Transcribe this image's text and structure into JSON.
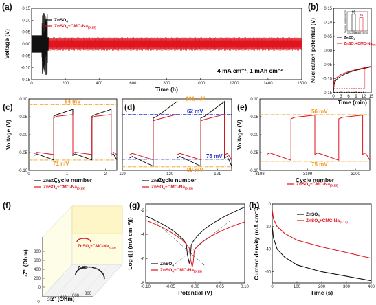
{
  "colors": {
    "znso4": "#111111",
    "cmc": "#e0141e",
    "orange": "#f39a1e",
    "blue": "#2a35c9"
  },
  "legend": {
    "a": "ZnSO",
    "a_sub": "4",
    "b": "ZnSO",
    "b_mid": "4",
    "b_tail": "+CMC-Na",
    "b_sub": "(0.13)"
  },
  "chart_data": [
    {
      "panel": "(a)",
      "type": "line",
      "xlabel": "Time (h)",
      "ylabel": "Voltage (V)",
      "xlim": [
        0,
        1600
      ],
      "ylim": [
        -0.15,
        0.15
      ],
      "xticks": [
        "0",
        "200",
        "400",
        "600",
        "800",
        "1000",
        "1200",
        "1400",
        "1600"
      ],
      "yticks": [
        "-0.15",
        "-0.10",
        "-0.05",
        "0.00",
        "0.05",
        "0.10",
        "0.15"
      ],
      "annotation": "4 mA cm⁻², 1 mAh cm⁻²",
      "series": [
        {
          "name": "ZnSO4",
          "x_range": [
            0,
            100
          ],
          "amplitude_max": 0.13
        },
        {
          "name": "ZnSO4+CMC-Na(0.13)",
          "x_range": [
            0,
            1600
          ],
          "amplitude": 0.028
        }
      ]
    },
    {
      "panel": "(b)",
      "type": "line",
      "xlabel": "Time (min)",
      "ylabel": "Nucleation potential (V)",
      "xlim": [
        0,
        15
      ],
      "ylim": [
        -0.15,
        0.15
      ],
      "xticks": [
        "0",
        "3",
        "6",
        "9",
        "12",
        "15"
      ],
      "yticks": [
        "-0.15",
        "-0.10",
        "-0.05",
        "0.00",
        "0.05",
        "0.10",
        "0.15"
      ],
      "series": [
        {
          "name": "ZnSO4",
          "x": [
            0,
            0.3,
            1,
            3,
            6,
            9,
            12,
            15
          ],
          "y": [
            -0.148,
            -0.12,
            -0.105,
            -0.09,
            -0.078,
            -0.07,
            -0.064,
            -0.058
          ]
        },
        {
          "name": "ZnSO4+CMC-Na(0.13)",
          "x": [
            0,
            0.3,
            1,
            3,
            6,
            9,
            12,
            15
          ],
          "y": [
            -0.135,
            -0.11,
            -0.098,
            -0.085,
            -0.075,
            -0.068,
            -0.062,
            -0.056
          ]
        }
      ],
      "inset": {
        "ylabel": "Nucleation overpotential (mV)",
        "categories": [
          "without CMC-Na",
          "with 0.13 CMC-Na"
        ],
        "values": [
          95,
          76
        ]
      }
    },
    {
      "panel": "(c)",
      "type": "line",
      "xlabel": "Cycle number",
      "ylabel": "Voltage (V)",
      "xlim": [
        0,
        2.3
      ],
      "ylim": [
        -0.1,
        0.1
      ],
      "xticks": [
        "0",
        "1",
        "2"
      ],
      "yticks": [
        "-0.10",
        "-0.05",
        "0.00",
        "0.05",
        "0.10"
      ],
      "annotations": [
        {
          "text": "84 mV",
          "y": 0.084
        },
        {
          "text": "71 mV",
          "y": -0.071
        }
      ]
    },
    {
      "panel": "(d)",
      "type": "line",
      "xlabel": "Cycle number",
      "ylabel": "",
      "xlim": [
        119,
        121.3
      ],
      "ylim": [
        -0.11,
        0.11
      ],
      "xticks": [
        "119",
        "120",
        "121"
      ],
      "annotations": [
        {
          "text": "101 mV",
          "y": 0.101
        },
        {
          "text": "62 mV",
          "y": 0.062
        },
        {
          "text": "76 mV",
          "y": -0.076
        },
        {
          "text": "99 mV",
          "y": -0.099
        }
      ]
    },
    {
      "panel": "(e)",
      "type": "line",
      "xlabel": "Cycle number",
      "ylabel": "Voltage (V)",
      "xlim": [
        3198,
        3200.3
      ],
      "ylim": [
        -0.1,
        0.1
      ],
      "xticks": [
        "3198",
        "3199",
        "3200"
      ],
      "yticks": [
        "-0.10",
        "-0.05",
        "0.00",
        "0.05",
        "0.10"
      ],
      "annotations": [
        {
          "text": "56 mV",
          "y": 0.056
        },
        {
          "text": "75 mV",
          "y": -0.075
        }
      ]
    },
    {
      "panel": "(f)",
      "type": "scatter",
      "xlabel": "Z' (Ohm)",
      "ylabel": "-Z'' (Ohm)",
      "xticks": [
        "0",
        "200",
        "400",
        "600",
        "800"
      ],
      "yticks": [
        "0",
        "200",
        "400",
        "600",
        "800"
      ],
      "labels": [
        "ZnSO4+CMC-Na(0.13)",
        "ZnSO4"
      ]
    },
    {
      "panel": "(g)",
      "type": "line",
      "xlabel": "Potential (V)",
      "ylabel": "Log (|j| (mA cm⁻²)|)",
      "xlim": [
        -0.1,
        0.1
      ],
      "ylim": [
        -8,
        -1.5
      ],
      "xticks": [
        "-0.10",
        "-0.05",
        "0.00",
        "0.05",
        "0.10"
      ],
      "yticks": [
        "-2",
        "-4",
        "-6",
        "-8"
      ]
    },
    {
      "panel": "(h)",
      "type": "line",
      "xlabel": "Time (s)",
      "ylabel": "Current density (mA cm⁻²)",
      "xlim": [
        0,
        400
      ],
      "ylim": [
        -70,
        0
      ],
      "xticks": [
        "0",
        "100",
        "200",
        "300",
        "400"
      ],
      "yticks": [
        "0",
        "-20",
        "-40",
        "-60"
      ],
      "series": [
        {
          "name": "ZnSO4",
          "x": [
            0,
            5,
            20,
            50,
            100,
            200,
            300,
            400
          ],
          "y": [
            -20,
            -30,
            -40,
            -47,
            -54,
            -60,
            -64,
            -68
          ]
        },
        {
          "name": "ZnSO4+CMC-Na(0.13)",
          "x": [
            0,
            5,
            20,
            50,
            100,
            200,
            300,
            400
          ],
          "y": [
            -5,
            -13,
            -20,
            -26,
            -32,
            -38,
            -43,
            -48
          ]
        }
      ]
    }
  ]
}
